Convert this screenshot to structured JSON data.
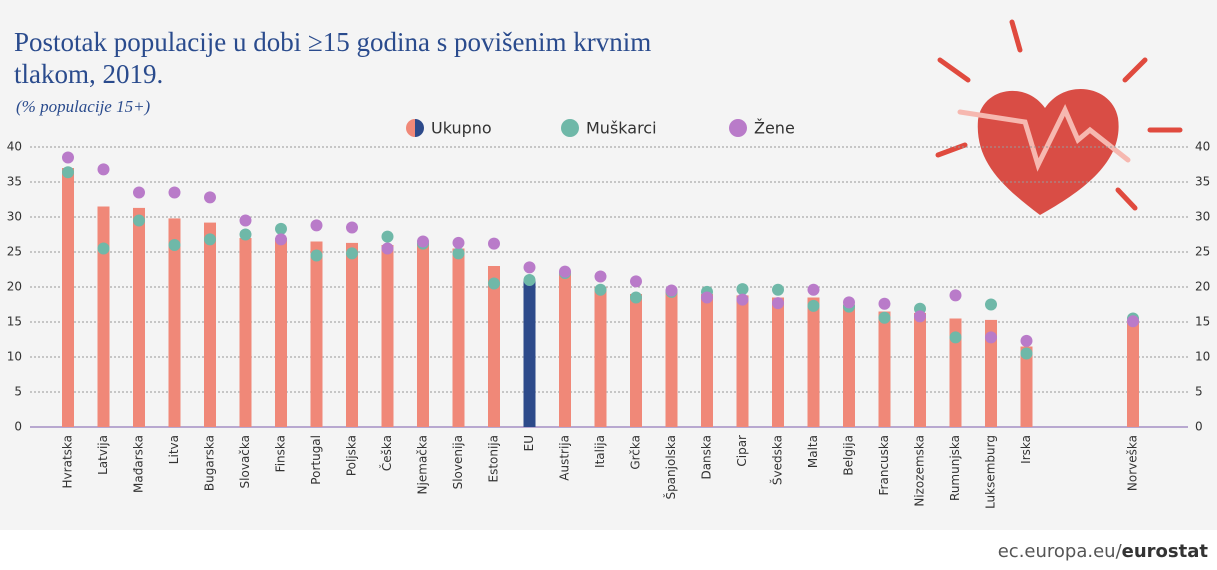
{
  "chart_data": {
    "type": "bar",
    "title": "Postotak populacije u dobi ≥15 godina s povišenim krvnim",
    "title_line2": "tlakom, 2019.",
    "subtitle": "(% populacije 15+)",
    "categories": [
      "Hvratska",
      "Latvija",
      "Mađarska",
      "Litva",
      "Bugarska",
      "Slovačka",
      "Finska",
      "Portugal",
      "Poljska",
      "Češka",
      "Njemačka",
      "Slovenija",
      "Estonija",
      "EU",
      "Austrija",
      "Italija",
      "Grčka",
      "Španjolska",
      "Danska",
      "Cipar",
      "Švedska",
      "Malta",
      "Belgija",
      "Francuska",
      "Nizozemska",
      "Rumunjska",
      "Luksemburg",
      "Irska",
      null,
      null,
      "Norveška"
    ],
    "series": [
      {
        "name": "Ukupno",
        "color": "#f08878",
        "values": [
          37,
          31.5,
          31.3,
          29.8,
          29.2,
          27,
          27,
          26.5,
          26.3,
          26,
          26.3,
          25.5,
          23,
          21,
          22,
          20,
          19,
          19.5,
          19,
          18.8,
          18.5,
          18.5,
          17.5,
          16.5,
          16.3,
          15.5,
          15.3,
          11.5,
          null,
          null,
          15.3
        ]
      },
      {
        "name": "Muškarci",
        "color": "#6fb8a8",
        "values": [
          36.4,
          25.5,
          29.5,
          26,
          26.8,
          27.5,
          28.3,
          24.5,
          24.8,
          27.2,
          26.2,
          24.8,
          20.5,
          21,
          22,
          19.6,
          18.5,
          19.3,
          19.3,
          19.7,
          19.6,
          17.3,
          17.2,
          15.6,
          16.9,
          12.8,
          17.5,
          10.5,
          null,
          null,
          15.5
        ]
      },
      {
        "name": "Žene",
        "color": "#b97bc9",
        "values": [
          38.5,
          36.8,
          33.5,
          33.5,
          32.8,
          29.5,
          26.8,
          28.8,
          28.5,
          25.5,
          26.5,
          26.3,
          26.2,
          22.8,
          22.2,
          21.5,
          20.8,
          19.5,
          18.5,
          18.2,
          17.7,
          19.6,
          17.8,
          17.6,
          15.8,
          18.8,
          12.8,
          12.3,
          null,
          null,
          15.1
        ]
      }
    ],
    "highlight_category": "EU",
    "highlight_color": "#2d4a8a",
    "ylim": [
      0,
      40
    ],
    "yticks": [
      0,
      5,
      10,
      15,
      20,
      25,
      30,
      35,
      40
    ],
    "grid": true,
    "source_domain": "ec.europa.eu/",
    "source_name": "eurostat"
  }
}
